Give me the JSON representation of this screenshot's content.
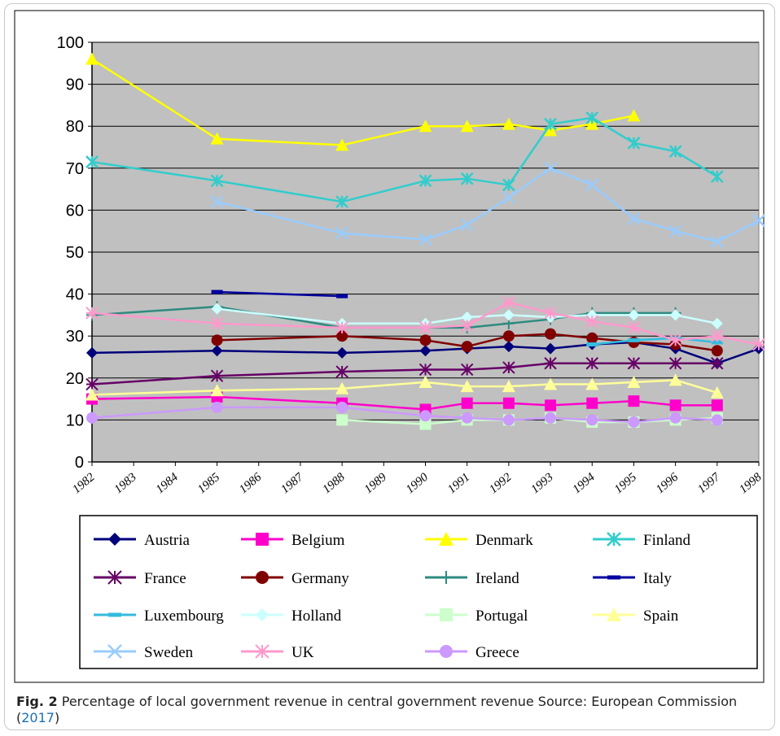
{
  "chart_data": {
    "type": "line",
    "title": "",
    "xlabel": "",
    "ylabel": "",
    "ylim": [
      0,
      100
    ],
    "yticks": [
      "0",
      "10",
      "20",
      "30",
      "40",
      "50",
      "60",
      "70",
      "80",
      "90",
      "100"
    ],
    "xticks": [
      "1982",
      "1983",
      "1984",
      "1985",
      "1986",
      "1987",
      "1988",
      "1989",
      "1990",
      "1991",
      "1992",
      "1993",
      "1994",
      "1995",
      "1996",
      "1997",
      "1998"
    ],
    "grid": true,
    "legend_position": "bottom",
    "plot_background": "#c0c0c0",
    "series": [
      {
        "name": "Austria",
        "color": "#00007a",
        "marker": "diamond",
        "x": [
          "1982",
          "1985",
          "1988",
          "1990",
          "1991",
          "1992",
          "1993",
          "1994",
          "1995",
          "1996",
          "1997",
          "1998"
        ],
        "values": [
          26,
          26.5,
          26,
          26.5,
          27,
          27.5,
          27,
          28,
          28.5,
          27,
          23.5,
          27
        ]
      },
      {
        "name": "Belgium",
        "color": "#ff00cc",
        "marker": "square",
        "x": [
          "1982",
          "1985",
          "1988",
          "1990",
          "1991",
          "1992",
          "1993",
          "1994",
          "1995",
          "1996",
          "1997"
        ],
        "values": [
          15,
          15.5,
          14,
          12.5,
          14,
          14,
          13.5,
          14,
          14.5,
          13.5,
          13.5
        ]
      },
      {
        "name": "Denmark",
        "color": "#ffff00",
        "marker": "triangle",
        "x": [
          "1982",
          "1985",
          "1988",
          "1990",
          "1991",
          "1992",
          "1993",
          "1994",
          "1995"
        ],
        "values": [
          96,
          77,
          75.5,
          80,
          80,
          80.5,
          79,
          80.5,
          82.5
        ]
      },
      {
        "name": "Finland",
        "color": "#33cccc",
        "marker": "star",
        "x": [
          "1982",
          "1985",
          "1988",
          "1990",
          "1991",
          "1992",
          "1993",
          "1994",
          "1995",
          "1996",
          "1997"
        ],
        "values": [
          71.5,
          67,
          62,
          67,
          67.5,
          66,
          80.5,
          82,
          76,
          74,
          68
        ]
      },
      {
        "name": "France",
        "color": "#660066",
        "marker": "asterisk",
        "x": [
          "1982",
          "1985",
          "1988",
          "1990",
          "1991",
          "1992",
          "1993",
          "1994",
          "1995",
          "1996",
          "1997"
        ],
        "values": [
          18.5,
          20.5,
          21.5,
          22,
          22,
          22.5,
          23.5,
          23.5,
          23.5,
          23.5,
          23.5
        ]
      },
      {
        "name": "Germany",
        "color": "#800000",
        "marker": "circle",
        "x": [
          "1985",
          "1988",
          "1990",
          "1991",
          "1992",
          "1993",
          "1994",
          "1995",
          "1996",
          "1997"
        ],
        "values": [
          29,
          30,
          29,
          27.5,
          30,
          30.5,
          29.5,
          28.5,
          28,
          26.5
        ]
      },
      {
        "name": "Ireland",
        "color": "#2e8b80",
        "marker": "plus",
        "x": [
          "1982",
          "1985",
          "1988",
          "1990",
          "1991",
          "1992",
          "1993",
          "1994",
          "1995",
          "1996"
        ],
        "values": [
          35,
          37,
          32,
          32,
          32,
          33,
          34,
          35.5,
          35.5,
          35.5
        ]
      },
      {
        "name": "Italy",
        "color": "#0000a0",
        "marker": "dash",
        "x": [
          "1985",
          "1988"
        ],
        "values": [
          40.5,
          39.5
        ]
      },
      {
        "name": "Luxembourg",
        "color": "#33bbdd",
        "marker": "dash",
        "x": [
          "1994",
          "1995",
          "1996",
          "1997"
        ],
        "values": [
          28,
          29,
          29.5,
          28.5
        ]
      },
      {
        "name": "Holland",
        "color": "#ccffff",
        "marker": "diamond",
        "x": [
          "1985",
          "1988",
          "1990",
          "1991",
          "1992",
          "1993",
          "1994",
          "1995",
          "1996",
          "1997"
        ],
        "values": [
          36.5,
          33,
          33,
          34.5,
          35,
          34.5,
          35,
          35,
          35,
          33
        ]
      },
      {
        "name": "Portugal",
        "color": "#ccffcc",
        "marker": "square",
        "x": [
          "1988",
          "1990",
          "1991",
          "1992",
          "1993",
          "1994",
          "1995",
          "1996",
          "1997"
        ],
        "values": [
          10,
          9,
          10,
          10,
          10.5,
          9.5,
          9.5,
          10,
          10.5
        ]
      },
      {
        "name": "Spain",
        "color": "#ffff99",
        "marker": "triangle",
        "x": [
          "1982",
          "1985",
          "1988",
          "1990",
          "1991",
          "1992",
          "1993",
          "1994",
          "1995",
          "1996",
          "1997"
        ],
        "values": [
          16,
          17,
          17.5,
          19,
          18,
          18,
          18.5,
          18.5,
          19,
          19.5,
          16.5
        ]
      },
      {
        "name": "Sweden",
        "color": "#99ccff",
        "marker": "cross",
        "x": [
          "1985",
          "1988",
          "1990",
          "1991",
          "1992",
          "1993",
          "1994",
          "1995",
          "1996",
          "1997",
          "1998"
        ],
        "values": [
          62,
          54.5,
          53,
          56.5,
          63,
          70,
          66,
          58,
          55,
          52.5,
          57.5
        ]
      },
      {
        "name": "UK",
        "color": "#ff99cc",
        "marker": "asterisk",
        "x": [
          "1982",
          "1985",
          "1988",
          "1990",
          "1991",
          "1992",
          "1993",
          "1994",
          "1995",
          "1996",
          "1997",
          "1998"
        ],
        "values": [
          35.5,
          33,
          32,
          32,
          32.5,
          38,
          35.5,
          33.5,
          32,
          29,
          30,
          28
        ]
      },
      {
        "name": "Greece",
        "color": "#cc99ff",
        "marker": "circle",
        "x": [
          "1982",
          "1985",
          "1988",
          "1990",
          "1991",
          "1992",
          "1993",
          "1994",
          "1995",
          "1996",
          "1997"
        ],
        "values": [
          10.5,
          13,
          13,
          11,
          10.5,
          10,
          10.5,
          10,
          9.5,
          10.5,
          10
        ]
      }
    ]
  },
  "caption": {
    "label": "Fig. 2",
    "text": "  Percentage of local government revenue in central government revenue Source: European Commission (",
    "ref": "2017",
    "end": ")"
  }
}
